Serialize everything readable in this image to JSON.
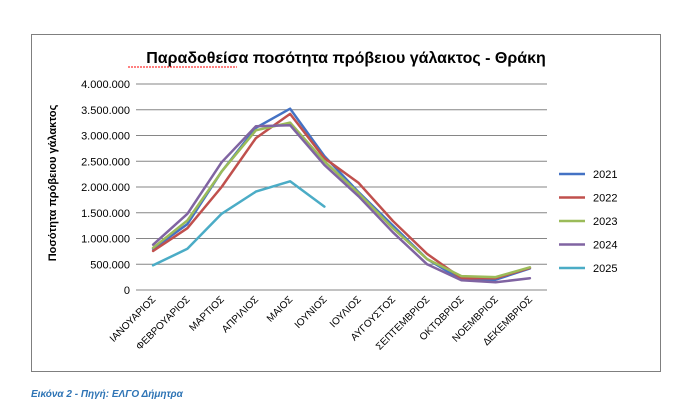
{
  "caption": "Εικόνα 2 - Πηγή: ΕΛΓΟ Δήμητρα",
  "chart_data": {
    "type": "line",
    "title": "Παραδοθείσα ποσότητα πρόβειου γάλακτος - Θράκη",
    "xlabel": "",
    "ylabel": "Ποσότητα πρόβειου γάλακτος",
    "ylim": [
      0,
      4000000
    ],
    "yticks": [
      0,
      500000,
      1000000,
      1500000,
      2000000,
      2500000,
      3000000,
      3500000,
      4000000
    ],
    "ytick_labels": [
      "0",
      "500.000",
      "1.000.000",
      "1.500.000",
      "2.000.000",
      "2.500.000",
      "3.000.000",
      "3.500.000",
      "4.000.000"
    ],
    "grid": true,
    "legend": "right",
    "categories": [
      "ΙΑΝΟΥΑΡΙΟΣ",
      "ΦΕΒΡΟΥΑΡΙΟΣ",
      "ΜΑΡΤΙΟΣ",
      "ΑΠΡΙΛΙΟΣ",
      "ΜΑΙΟΣ",
      "ΙΟΥΝΙΟΣ",
      "ΙΟΥΛΙΟΣ",
      "ΑΥΓΟΥΣΤΟΣ",
      "ΣΕΠΤΕΜΒΡΙΟΣ",
      "ΟΚΤΩΒΡΙΟΣ",
      "ΝΟΕΜΒΡΙΟΣ",
      "ΔΕΚΕΜΒΡΙΟΣ"
    ],
    "series": [
      {
        "name": "2021",
        "color": "#4472c4",
        "values": [
          800000,
          1280000,
          2300000,
          3150000,
          3520000,
          2600000,
          1900000,
          1250000,
          600000,
          200000,
          200000,
          420000
        ]
      },
      {
        "name": "2022",
        "color": "#c0504d",
        "values": [
          760000,
          1200000,
          2000000,
          2950000,
          3420000,
          2560000,
          2080000,
          1340000,
          700000,
          230000,
          230000,
          430000
        ]
      },
      {
        "name": "2023",
        "color": "#9bbb59",
        "values": [
          820000,
          1350000,
          2300000,
          3100000,
          3250000,
          2500000,
          1880000,
          1200000,
          600000,
          270000,
          250000,
          440000
        ]
      },
      {
        "name": "2024",
        "color": "#8064a2",
        "values": [
          880000,
          1480000,
          2480000,
          3180000,
          3200000,
          2430000,
          1820000,
          1120000,
          500000,
          190000,
          150000,
          230000
        ]
      },
      {
        "name": "2025",
        "color": "#4bacc6",
        "values": [
          480000,
          800000,
          1480000,
          1910000,
          2110000,
          1620000,
          null,
          null,
          null,
          null,
          null,
          null
        ]
      }
    ]
  }
}
